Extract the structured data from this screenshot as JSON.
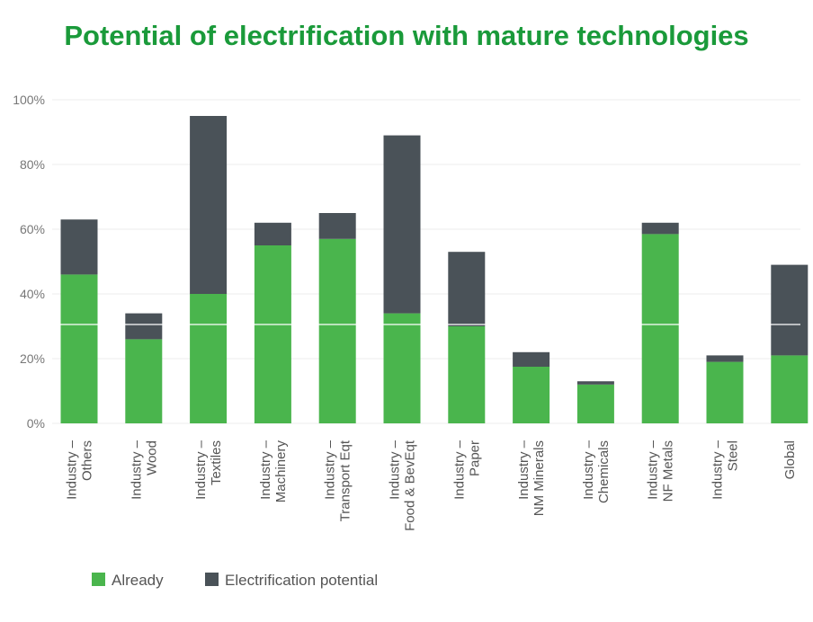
{
  "title": "Potential of electrification with mature technologies",
  "chart_data": {
    "type": "bar",
    "stacked": true,
    "categories": [
      [
        "Industry –",
        "Others"
      ],
      [
        "Industry –",
        "Wood"
      ],
      [
        "Industry –",
        "Textiles"
      ],
      [
        "Industry –",
        "Machinery"
      ],
      [
        "Industry –",
        "Transport Eqt"
      ],
      [
        "Industry –",
        "Food & BevEqt"
      ],
      [
        "Industry –",
        "Paper"
      ],
      [
        "Industry –",
        "NM Minerals"
      ],
      [
        "Industry –",
        "Chemicals"
      ],
      [
        "Industry –",
        "NF Metals"
      ],
      [
        "Industry –",
        "Steel"
      ],
      [
        "Global"
      ]
    ],
    "series": [
      {
        "name": "Already",
        "color": "#4ab54d",
        "values": [
          46,
          26,
          40,
          55,
          57,
          34,
          30,
          17.5,
          12,
          58.5,
          19,
          21
        ]
      },
      {
        "name": "Electrification potential",
        "color": "#4a5258",
        "values": [
          17,
          8,
          55,
          7,
          8,
          55,
          23,
          4.5,
          1,
          3.5,
          2,
          28
        ]
      }
    ],
    "ylim": [
      0,
      100
    ],
    "yticks": [
      "0%",
      "20%",
      "40%",
      "60%",
      "80%",
      "100%"
    ],
    "grid": true,
    "legend": "bottom-left"
  }
}
